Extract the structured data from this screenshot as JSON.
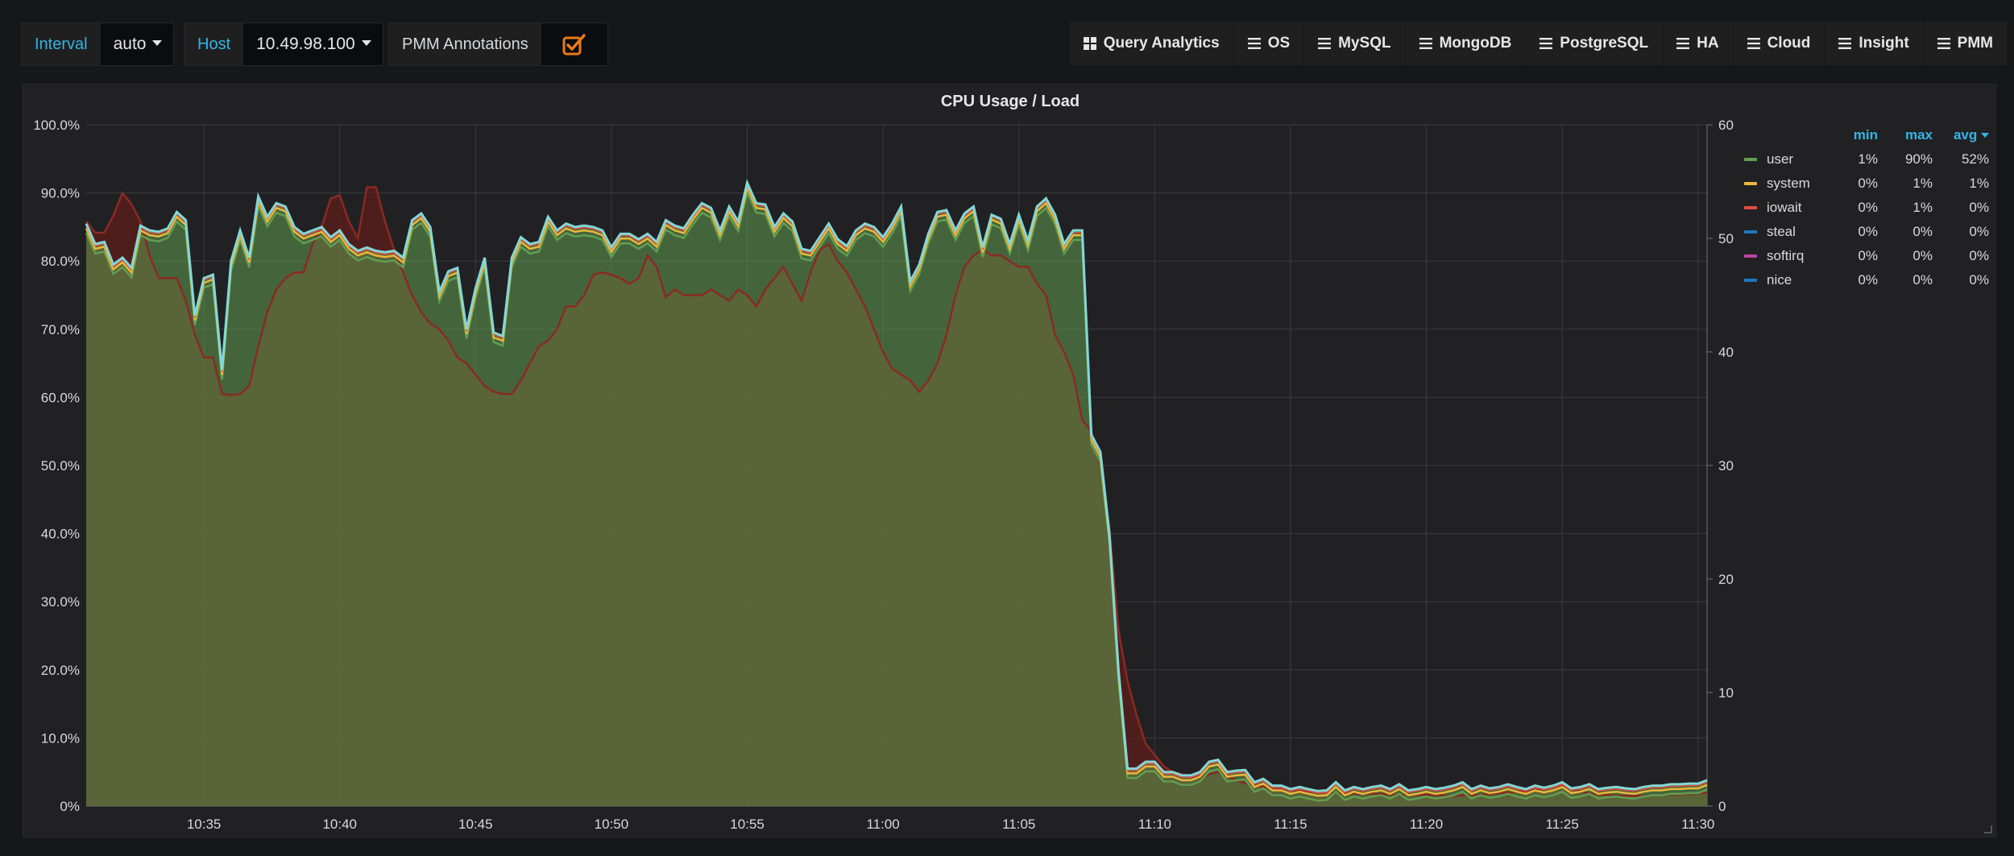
{
  "toolbar": {
    "interval_label": "Interval",
    "interval_value": "auto",
    "host_label": "Host",
    "host_value": "10.49.98.100",
    "annotations_label": "PMM Annotations",
    "annotations_checked": true
  },
  "nav": [
    {
      "label": "Query Analytics",
      "icon": "grid-icon"
    },
    {
      "label": "OS",
      "icon": "menu-icon"
    },
    {
      "label": "MySQL",
      "icon": "menu-icon"
    },
    {
      "label": "MongoDB",
      "icon": "menu-icon"
    },
    {
      "label": "PostgreSQL",
      "icon": "menu-icon"
    },
    {
      "label": "HA",
      "icon": "menu-icon"
    },
    {
      "label": "Cloud",
      "icon": "menu-icon"
    },
    {
      "label": "Insight",
      "icon": "menu-icon"
    },
    {
      "label": "PMM",
      "icon": "menu-icon"
    }
  ],
  "colors": {
    "user": "#629e51",
    "system": "#eab839",
    "iowait": "#e24d42",
    "steal": "#1f78c1",
    "softirq": "#ba43a9",
    "nice": "#1f78c1",
    "load": "#82d8d8",
    "accent": "#33b5e5",
    "checkbox": "#eb7b18"
  },
  "chart_data": {
    "type": "area",
    "title": "CPU Usage / Load",
    "x_ticks": [
      "10:35",
      "10:40",
      "10:45",
      "10:50",
      "10:55",
      "11:00",
      "11:05",
      "11:10",
      "11:15",
      "11:20",
      "11:25",
      "11:30"
    ],
    "xlim": [
      "10:30:40",
      "11:30:20"
    ],
    "y_left_ticks": [
      "0%",
      "10.0%",
      "20.0%",
      "30.0%",
      "40.0%",
      "50.0%",
      "60.0%",
      "70.0%",
      "80.0%",
      "90.0%",
      "100.0%"
    ],
    "y_left_range": [
      0,
      100
    ],
    "y_right_ticks": [
      "0",
      "10",
      "20",
      "30",
      "40",
      "50",
      "60"
    ],
    "y_right_range": [
      0,
      60
    ],
    "grid": true,
    "legend_placement": "right",
    "legend_headers": {
      "min": "min",
      "max": "max",
      "avg": "avg"
    },
    "legend": [
      {
        "name": "user",
        "min": "1%",
        "max": "90%",
        "avg": "52%"
      },
      {
        "name": "system",
        "min": "0%",
        "max": "1%",
        "avg": "1%"
      },
      {
        "name": "iowait",
        "min": "0%",
        "max": "1%",
        "avg": "0%"
      },
      {
        "name": "steal",
        "min": "0%",
        "max": "0%",
        "avg": "0%"
      },
      {
        "name": "softirq",
        "min": "0%",
        "max": "0%",
        "avg": "0%"
      },
      {
        "name": "nice",
        "min": "0%",
        "max": "0%",
        "avg": "0%"
      }
    ],
    "total_cpu_pct": [
      [
        "10:30:40",
        85.5
      ],
      [
        "10:31:00",
        82.5
      ],
      [
        "10:31:20",
        82.8
      ],
      [
        "10:31:40",
        79.5
      ],
      [
        "10:32:00",
        80.5
      ],
      [
        "10:32:20",
        79.0
      ],
      [
        "10:32:40",
        85.2
      ],
      [
        "10:33:00",
        84.5
      ],
      [
        "10:33:20",
        84.3
      ],
      [
        "10:33:40",
        84.8
      ],
      [
        "10:34:00",
        87.2
      ],
      [
        "10:34:20",
        86.0
      ],
      [
        "10:34:40",
        72.0
      ],
      [
        "10:35:00",
        77.5
      ],
      [
        "10:35:20",
        78.0
      ],
      [
        "10:35:40",
        64.0
      ],
      [
        "10:36:00",
        80.0
      ],
      [
        "10:36:20",
        84.5
      ],
      [
        "10:36:40",
        80.5
      ],
      [
        "10:37:00",
        89.5
      ],
      [
        "10:37:20",
        86.5
      ],
      [
        "10:37:40",
        88.5
      ],
      [
        "10:38:00",
        88.0
      ],
      [
        "10:38:20",
        85.0
      ],
      [
        "10:38:40",
        84.0
      ],
      [
        "10:39:00",
        84.5
      ],
      [
        "10:39:20",
        85.0
      ],
      [
        "10:39:40",
        83.5
      ],
      [
        "10:40:00",
        84.5
      ],
      [
        "10:40:20",
        82.5
      ],
      [
        "10:40:40",
        81.5
      ],
      [
        "10:41:00",
        82.0
      ],
      [
        "10:41:20",
        81.5
      ],
      [
        "10:41:40",
        81.3
      ],
      [
        "10:42:00",
        81.5
      ],
      [
        "10:42:20",
        80.5
      ],
      [
        "10:42:40",
        86.0
      ],
      [
        "10:43:00",
        87.0
      ],
      [
        "10:43:20",
        85.0
      ],
      [
        "10:43:40",
        75.5
      ],
      [
        "10:44:00",
        78.5
      ],
      [
        "10:44:20",
        79.0
      ],
      [
        "10:44:40",
        70.0
      ],
      [
        "10:45:00",
        76.0
      ],
      [
        "10:45:20",
        80.5
      ],
      [
        "10:45:40",
        69.5
      ],
      [
        "10:46:00",
        69.0
      ],
      [
        "10:46:20",
        80.5
      ],
      [
        "10:46:40",
        83.5
      ],
      [
        "10:47:00",
        82.5
      ],
      [
        "10:47:20",
        82.8
      ],
      [
        "10:47:40",
        86.5
      ],
      [
        "10:48:00",
        84.5
      ],
      [
        "10:48:20",
        85.5
      ],
      [
        "10:48:40",
        85.0
      ],
      [
        "10:49:00",
        85.2
      ],
      [
        "10:49:20",
        85.0
      ],
      [
        "10:49:40",
        84.5
      ],
      [
        "10:50:00",
        82.0
      ],
      [
        "10:50:20",
        84.0
      ],
      [
        "10:50:40",
        84.0
      ],
      [
        "10:51:00",
        83.2
      ],
      [
        "10:51:20",
        84.0
      ],
      [
        "10:51:40",
        82.8
      ],
      [
        "10:52:00",
        86.0
      ],
      [
        "10:52:20",
        85.2
      ],
      [
        "10:52:40",
        84.8
      ],
      [
        "10:53:00",
        86.8
      ],
      [
        "10:53:20",
        88.5
      ],
      [
        "10:53:40",
        87.8
      ],
      [
        "10:54:00",
        84.5
      ],
      [
        "10:54:20",
        88.0
      ],
      [
        "10:54:40",
        85.8
      ],
      [
        "10:55:00",
        91.5
      ],
      [
        "10:55:20",
        88.5
      ],
      [
        "10:55:40",
        88.3
      ],
      [
        "10:56:00",
        85.0
      ],
      [
        "10:56:20",
        87.0
      ],
      [
        "10:56:40",
        85.8
      ],
      [
        "10:57:00",
        81.8
      ],
      [
        "10:57:20",
        81.5
      ],
      [
        "10:57:40",
        83.5
      ],
      [
        "10:58:00",
        85.5
      ],
      [
        "10:58:20",
        83.2
      ],
      [
        "10:58:40",
        82.2
      ],
      [
        "10:59:00",
        84.5
      ],
      [
        "10:59:20",
        85.5
      ],
      [
        "10:59:40",
        85.0
      ],
      [
        "11:00:00",
        83.5
      ],
      [
        "11:00:20",
        85.5
      ],
      [
        "11:00:40",
        88.0
      ],
      [
        "11:01:00",
        77.0
      ],
      [
        "11:01:20",
        79.5
      ],
      [
        "11:01:40",
        84.0
      ],
      [
        "11:02:00",
        87.2
      ],
      [
        "11:02:20",
        87.5
      ],
      [
        "11:02:40",
        84.5
      ],
      [
        "11:03:00",
        87.0
      ],
      [
        "11:03:20",
        88.0
      ],
      [
        "11:03:40",
        82.0
      ],
      [
        "11:04:00",
        86.8
      ],
      [
        "11:04:20",
        86.2
      ],
      [
        "11:04:40",
        82.5
      ],
      [
        "11:05:00",
        86.8
      ],
      [
        "11:05:20",
        83.0
      ],
      [
        "11:05:40",
        88.0
      ],
      [
        "11:06:00",
        89.2
      ],
      [
        "11:06:20",
        86.8
      ],
      [
        "11:06:40",
        82.5
      ],
      [
        "11:07:00",
        84.5
      ],
      [
        "11:07:20",
        84.5
      ],
      [
        "11:07:40",
        54.5
      ],
      [
        "11:08:00",
        52.0
      ],
      [
        "11:08:20",
        40.0
      ],
      [
        "11:08:40",
        20.0
      ],
      [
        "11:09:00",
        5.5
      ],
      [
        "11:09:20",
        5.5
      ],
      [
        "11:09:40",
        6.5
      ],
      [
        "11:10:00",
        6.5
      ],
      [
        "11:10:20",
        5.0
      ],
      [
        "11:10:40",
        5.0
      ],
      [
        "11:11:00",
        4.5
      ],
      [
        "11:11:20",
        4.5
      ],
      [
        "11:11:40",
        5.0
      ],
      [
        "11:12:00",
        6.5
      ],
      [
        "11:12:20",
        6.8
      ],
      [
        "11:12:40",
        5.0
      ],
      [
        "11:13:00",
        5.2
      ],
      [
        "11:13:20",
        5.3
      ],
      [
        "11:13:40",
        3.5
      ],
      [
        "11:14:00",
        4.0
      ],
      [
        "11:14:20",
        3.0
      ],
      [
        "11:14:40",
        3.0
      ],
      [
        "11:15:00",
        2.5
      ],
      [
        "11:15:20",
        2.8
      ],
      [
        "11:15:40",
        2.5
      ],
      [
        "11:16:00",
        2.2
      ],
      [
        "11:16:20",
        2.3
      ],
      [
        "11:16:40",
        3.5
      ],
      [
        "11:17:00",
        2.3
      ],
      [
        "11:17:20",
        2.8
      ],
      [
        "11:17:40",
        2.5
      ],
      [
        "11:18:00",
        2.8
      ],
      [
        "11:18:20",
        3.0
      ],
      [
        "11:18:40",
        2.5
      ],
      [
        "11:19:00",
        3.2
      ],
      [
        "11:19:20",
        2.3
      ],
      [
        "11:19:40",
        2.5
      ],
      [
        "11:20:00",
        2.8
      ],
      [
        "11:20:20",
        2.5
      ],
      [
        "11:20:40",
        2.7
      ],
      [
        "11:21:00",
        3.0
      ],
      [
        "11:21:20",
        3.5
      ],
      [
        "11:21:40",
        2.5
      ],
      [
        "11:22:00",
        3.0
      ],
      [
        "11:22:20",
        2.6
      ],
      [
        "11:22:40",
        2.8
      ],
      [
        "11:23:00",
        3.2
      ],
      [
        "11:23:20",
        2.8
      ],
      [
        "11:23:40",
        2.5
      ],
      [
        "11:24:00",
        3.0
      ],
      [
        "11:24:20",
        2.7
      ],
      [
        "11:24:40",
        3.0
      ],
      [
        "11:25:00",
        3.5
      ],
      [
        "11:25:20",
        2.6
      ],
      [
        "11:25:40",
        2.8
      ],
      [
        "11:26:00",
        3.2
      ],
      [
        "11:26:20",
        2.5
      ],
      [
        "11:26:40",
        2.7
      ],
      [
        "11:27:00",
        2.8
      ],
      [
        "11:27:20",
        2.6
      ],
      [
        "11:27:40",
        2.5
      ],
      [
        "11:28:00",
        2.8
      ],
      [
        "11:28:20",
        3.0
      ],
      [
        "11:28:40",
        3.0
      ],
      [
        "11:29:00",
        3.2
      ],
      [
        "11:29:20",
        3.2
      ],
      [
        "11:29:40",
        3.3
      ],
      [
        "11:30:00",
        3.3
      ],
      [
        "11:30:20",
        3.8
      ]
    ],
    "load_right_axis": [
      [
        "10:30:40",
        51.5
      ],
      [
        "10:31:00",
        50.5
      ],
      [
        "10:31:20",
        50.5
      ],
      [
        "10:31:40",
        52.0
      ],
      [
        "10:32:00",
        54.0
      ],
      [
        "10:32:20",
        53.0
      ],
      [
        "10:32:40",
        51.5
      ],
      [
        "10:33:00",
        48.5
      ],
      [
        "10:33:20",
        46.5
      ],
      [
        "10:33:40",
        46.5
      ],
      [
        "10:34:00",
        46.5
      ],
      [
        "10:34:20",
        44.5
      ],
      [
        "10:34:40",
        41.5
      ],
      [
        "10:35:00",
        39.5
      ],
      [
        "10:35:20",
        39.5
      ],
      [
        "10:35:40",
        36.3
      ],
      [
        "10:36:00",
        36.2
      ],
      [
        "10:36:20",
        36.3
      ],
      [
        "10:36:40",
        37.0
      ],
      [
        "10:37:00",
        40.5
      ],
      [
        "10:37:20",
        43.5
      ],
      [
        "10:37:40",
        45.5
      ],
      [
        "10:38:00",
        46.5
      ],
      [
        "10:38:20",
        47.0
      ],
      [
        "10:38:40",
        47.0
      ],
      [
        "10:39:00",
        49.5
      ],
      [
        "10:39:20",
        51.0
      ],
      [
        "10:39:40",
        53.5
      ],
      [
        "10:40:00",
        53.8
      ],
      [
        "10:40:20",
        51.5
      ],
      [
        "10:40:40",
        50.0
      ],
      [
        "10:41:00",
        54.5
      ],
      [
        "10:41:20",
        54.5
      ],
      [
        "10:41:40",
        51.5
      ],
      [
        "10:42:00",
        49.0
      ],
      [
        "10:42:20",
        47.0
      ],
      [
        "10:42:40",
        45.0
      ],
      [
        "10:43:00",
        43.5
      ],
      [
        "10:43:20",
        42.5
      ],
      [
        "10:43:40",
        42.0
      ],
      [
        "10:44:00",
        41.0
      ],
      [
        "10:44:20",
        39.5
      ],
      [
        "10:44:40",
        39.0
      ],
      [
        "10:45:00",
        38.0
      ],
      [
        "10:45:20",
        37.0
      ],
      [
        "10:45:40",
        36.5
      ],
      [
        "10:46:00",
        36.3
      ],
      [
        "10:46:20",
        36.3
      ],
      [
        "10:46:40",
        37.5
      ],
      [
        "10:47:00",
        39.0
      ],
      [
        "10:47:20",
        40.5
      ],
      [
        "10:47:40",
        41.0
      ],
      [
        "10:48:00",
        42.0
      ],
      [
        "10:48:20",
        44.0
      ],
      [
        "10:48:40",
        44.0
      ],
      [
        "10:49:00",
        45.0
      ],
      [
        "10:49:20",
        46.8
      ],
      [
        "10:49:40",
        47.0
      ],
      [
        "10:50:00",
        46.8
      ],
      [
        "10:50:20",
        46.5
      ],
      [
        "10:50:40",
        46.0
      ],
      [
        "10:51:00",
        46.5
      ],
      [
        "10:51:20",
        48.5
      ],
      [
        "10:51:40",
        47.5
      ],
      [
        "10:52:00",
        44.8
      ],
      [
        "10:52:20",
        45.5
      ],
      [
        "10:52:40",
        45.0
      ],
      [
        "10:53:00",
        45.0
      ],
      [
        "10:53:20",
        45.0
      ],
      [
        "10:53:40",
        45.5
      ],
      [
        "10:54:00",
        45.0
      ],
      [
        "10:54:20",
        44.5
      ],
      [
        "10:54:40",
        45.5
      ],
      [
        "10:55:00",
        45.0
      ],
      [
        "10:55:20",
        44.0
      ],
      [
        "10:55:40",
        45.5
      ],
      [
        "10:56:00",
        46.5
      ],
      [
        "10:56:20",
        47.5
      ],
      [
        "10:56:40",
        46.0
      ],
      [
        "10:57:00",
        44.5
      ],
      [
        "10:57:20",
        47.0
      ],
      [
        "10:57:40",
        49.0
      ],
      [
        "10:58:00",
        49.5
      ],
      [
        "10:58:20",
        48.0
      ],
      [
        "10:58:40",
        47.0
      ],
      [
        "10:59:00",
        45.5
      ],
      [
        "10:59:20",
        44.0
      ],
      [
        "10:59:40",
        42.0
      ],
      [
        "11:00:00",
        40.0
      ],
      [
        "11:00:20",
        38.5
      ],
      [
        "11:00:40",
        38.0
      ],
      [
        "11:01:00",
        37.5
      ],
      [
        "11:01:20",
        36.5
      ],
      [
        "11:01:40",
        37.5
      ],
      [
        "11:02:00",
        39.0
      ],
      [
        "11:02:20",
        41.5
      ],
      [
        "11:02:40",
        45.0
      ],
      [
        "11:03:00",
        47.5
      ],
      [
        "11:03:20",
        48.5
      ],
      [
        "11:03:40",
        49.0
      ],
      [
        "11:04:00",
        48.5
      ],
      [
        "11:04:20",
        48.5
      ],
      [
        "11:04:40",
        48.0
      ],
      [
        "11:05:00",
        47.5
      ],
      [
        "11:05:20",
        47.5
      ],
      [
        "11:05:40",
        46.0
      ],
      [
        "11:06:00",
        45.0
      ],
      [
        "11:06:20",
        41.5
      ],
      [
        "11:06:40",
        40.0
      ],
      [
        "11:07:00",
        38.0
      ],
      [
        "11:07:20",
        34.0
      ],
      [
        "11:07:40",
        33.0
      ],
      [
        "11:08:00",
        30.0
      ],
      [
        "11:08:20",
        24.5
      ],
      [
        "11:08:40",
        15.5
      ],
      [
        "11:09:00",
        11.0
      ],
      [
        "11:09:20",
        8.0
      ],
      [
        "11:09:40",
        5.5
      ],
      [
        "11:10:00",
        4.5
      ],
      [
        "11:10:20",
        3.5
      ],
      [
        "11:10:40",
        3.0
      ],
      [
        "11:11:00",
        2.8
      ],
      [
        "11:11:20",
        2.6
      ],
      [
        "11:11:40",
        2.5
      ],
      [
        "11:12:00",
        2.8
      ],
      [
        "11:12:20",
        3.0
      ],
      [
        "11:12:40",
        2.6
      ],
      [
        "11:13:00",
        2.3
      ],
      [
        "11:13:20",
        2.0
      ],
      [
        "11:13:40",
        1.8
      ],
      [
        "11:14:00",
        1.7
      ],
      [
        "11:14:20",
        1.6
      ],
      [
        "11:14:40",
        1.5
      ],
      [
        "11:15:00",
        1.4
      ],
      [
        "11:15:20",
        1.3
      ],
      [
        "11:15:40",
        1.3
      ],
      [
        "11:16:00",
        1.2
      ],
      [
        "11:16:20",
        1.2
      ],
      [
        "11:17:00",
        1.1
      ],
      [
        "11:18:00",
        1.1
      ],
      [
        "11:19:00",
        1.0
      ],
      [
        "11:20:00",
        1.0
      ],
      [
        "11:21:00",
        0.9
      ],
      [
        "11:22:00",
        1.0
      ],
      [
        "11:23:00",
        1.2
      ],
      [
        "11:24:00",
        1.4
      ],
      [
        "11:25:00",
        1.8
      ],
      [
        "11:25:40",
        1.3
      ],
      [
        "11:26:00",
        1.1
      ],
      [
        "11:27:00",
        0.9
      ],
      [
        "11:28:00",
        0.9
      ],
      [
        "11:29:00",
        1.0
      ],
      [
        "11:30:00",
        1.1
      ],
      [
        "11:30:20",
        1.2
      ]
    ]
  }
}
